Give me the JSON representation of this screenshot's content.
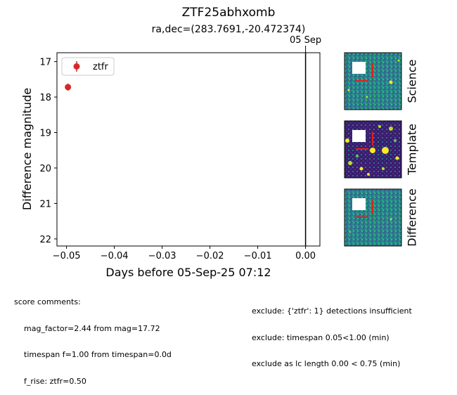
{
  "header": {
    "title": "ZTF25abhxomb",
    "subtitle": "ra,dec=(283.7691,-20.472374)"
  },
  "colors": {
    "ztfr": "#d62728",
    "axis": "#000000"
  },
  "chart_data": {
    "type": "scatter",
    "xlabel": "Days before 05-Sep-25 07:12",
    "ylabel": "Difference magnitude",
    "xlim": [
      -0.052,
      0.003
    ],
    "ylim": [
      22.2,
      16.75
    ],
    "y_inverted": true,
    "xticks": [
      -0.05,
      -0.04,
      -0.03,
      -0.02,
      -0.01,
      0.0
    ],
    "xtick_labels": [
      "−0.05",
      "−0.04",
      "−0.03",
      "−0.02",
      "−0.01",
      "0.00"
    ],
    "yticks": [
      17,
      18,
      19,
      20,
      21,
      22
    ],
    "ytick_labels": [
      "17",
      "18",
      "19",
      "20",
      "21",
      "22"
    ],
    "grid": false,
    "legend_position": "top-left",
    "series": [
      {
        "name": "ztfr",
        "color": "#d62728",
        "x": [
          -0.0497
        ],
        "y": [
          17.72
        ],
        "yerr": [
          0.1
        ]
      }
    ],
    "vline": {
      "x": 0.0,
      "label": "05 Sep"
    }
  },
  "stamps": [
    {
      "label": "Science"
    },
    {
      "label": "Template"
    },
    {
      "label": "Difference"
    }
  ],
  "comments": {
    "left_header": "score comments:",
    "left_lines": [
      "mag_factor=2.44 from mag=17.72",
      "timespan f=1.00 from timespan=0.0d",
      "f_rise: ztfr=0.50"
    ],
    "right_lines": [
      "exclude: {'ztfr': 1} detections insufficient",
      "exclude: timespan 0.05<1.00 (min)",
      "exclude as lc length 0.00 < 0.75 (min)"
    ]
  }
}
